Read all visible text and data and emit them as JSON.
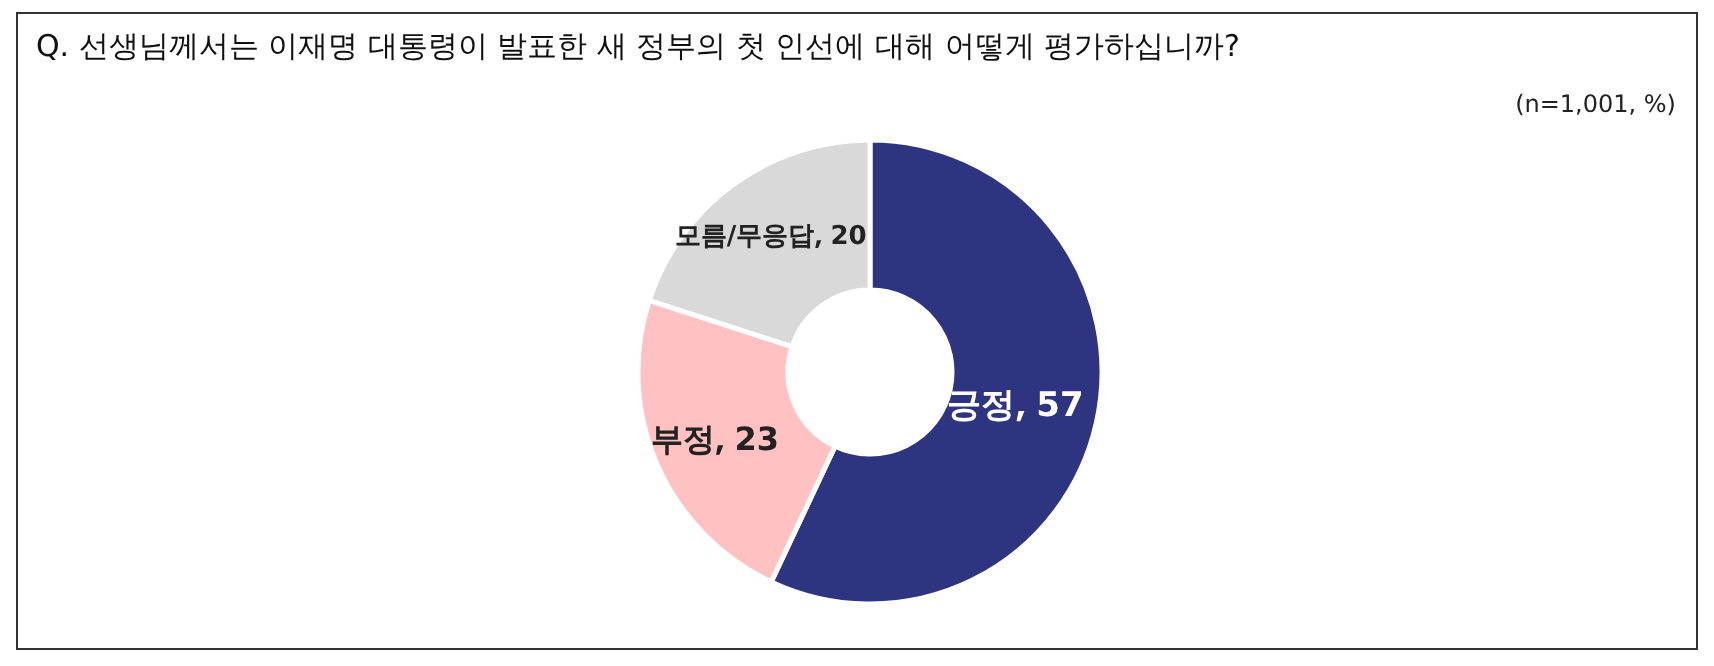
{
  "chart_data": {
    "type": "donut",
    "title": "Q. 선생님께서는 이재명 대통령이 발표한 새 정부의 첫 인선에 대해 어떻게 평가하십니까?",
    "annotations": [
      "(n=1,001,  %)"
    ],
    "categories": [
      "긍정",
      "부정",
      "모름/무응답"
    ],
    "values": [
      57,
      23,
      20
    ],
    "colors": [
      "#2e3480",
      "#ffc1c1",
      "#d9d9d9"
    ],
    "data_labels": true
  }
}
